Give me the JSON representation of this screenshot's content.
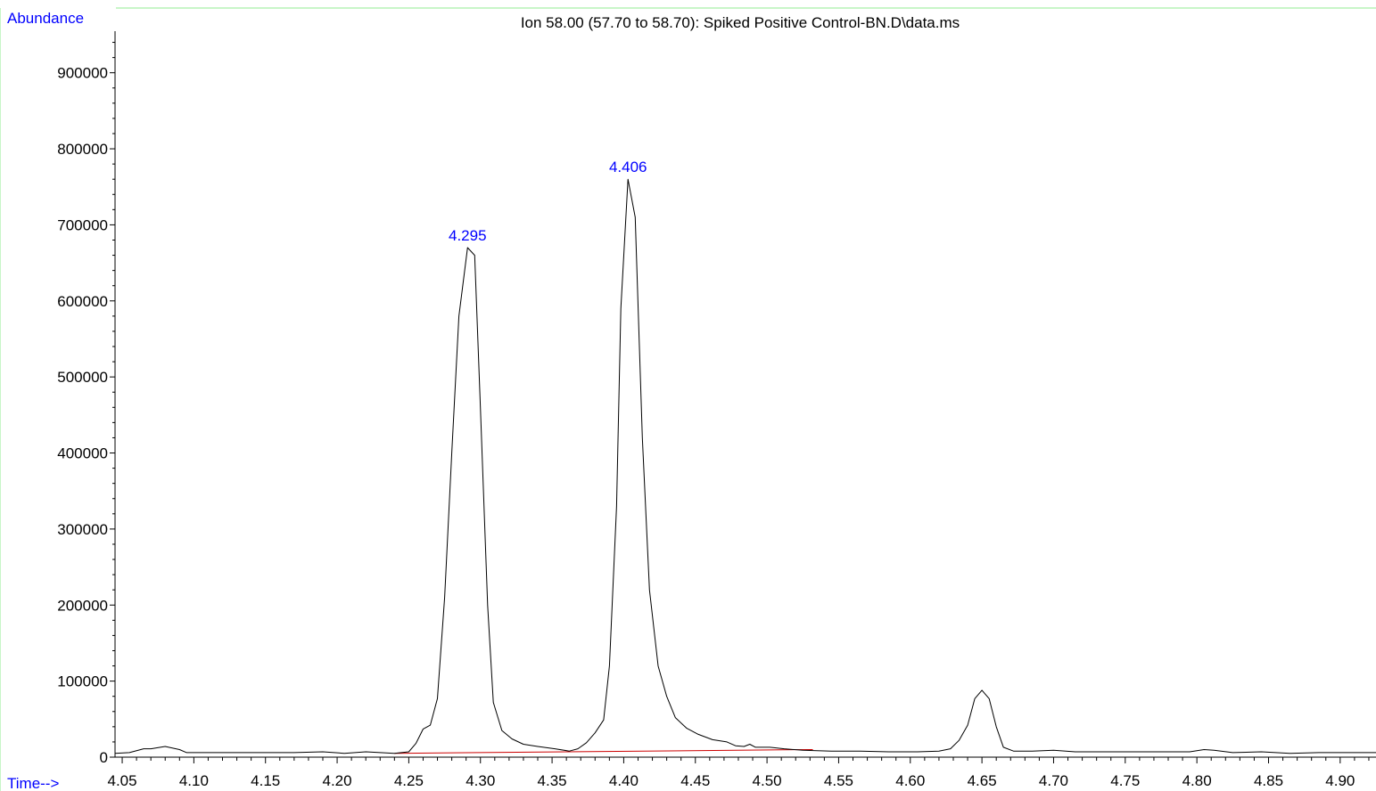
{
  "colors": {
    "frame": "#90ee90",
    "axis": "#000000",
    "trace": "#000000",
    "baseline": "#cc0000",
    "label_blue": "#0000ff"
  },
  "chart_data": {
    "type": "line",
    "title": "Ion  58.00 (57.70 to 58.70): Spiked Positive Control-BN.D\\data.ms",
    "ylabel": "Abundance",
    "xlabel": "Time-->",
    "xlim": [
      4.045,
      4.925
    ],
    "ylim": [
      0,
      950000
    ],
    "x_ticks": [
      "4.05",
      "4.10",
      "4.15",
      "4.20",
      "4.25",
      "4.30",
      "4.35",
      "4.40",
      "4.45",
      "4.50",
      "4.55",
      "4.60",
      "4.65",
      "4.70",
      "4.75",
      "4.80",
      "4.85",
      "4.90"
    ],
    "y_ticks": [
      "0",
      "100000",
      "200000",
      "300000",
      "400000",
      "500000",
      "600000",
      "700000",
      "800000",
      "900000"
    ],
    "grid": false,
    "series": [
      {
        "values": [
          [
            4.045,
            5000
          ],
          [
            4.055,
            6000
          ],
          [
            4.065,
            11000
          ],
          [
            4.07,
            11000
          ],
          [
            4.08,
            14000
          ],
          [
            4.09,
            10000
          ],
          [
            4.095,
            6000
          ],
          [
            4.11,
            6000
          ],
          [
            4.13,
            6000
          ],
          [
            4.15,
            6000
          ],
          [
            4.17,
            6000
          ],
          [
            4.19,
            7000
          ],
          [
            4.205,
            5000
          ],
          [
            4.22,
            7000
          ],
          [
            4.24,
            5000
          ],
          [
            4.25,
            7000
          ],
          [
            4.255,
            18000
          ],
          [
            4.26,
            37000
          ],
          [
            4.265,
            42000
          ],
          [
            4.27,
            77000
          ],
          [
            4.275,
            210000
          ],
          [
            4.28,
            400000
          ],
          [
            4.285,
            580000
          ],
          [
            4.291,
            670000
          ],
          [
            4.296,
            660000
          ],
          [
            4.3,
            460000
          ],
          [
            4.305,
            200000
          ],
          [
            4.309,
            72000
          ],
          [
            4.315,
            35000
          ],
          [
            4.322,
            24000
          ],
          [
            4.33,
            17000
          ],
          [
            4.34,
            14000
          ],
          [
            4.352,
            11000
          ],
          [
            4.362,
            8000
          ],
          [
            4.368,
            11000
          ],
          [
            4.374,
            19000
          ],
          [
            4.38,
            32000
          ],
          [
            4.386,
            49000
          ],
          [
            4.39,
            120000
          ],
          [
            4.395,
            330000
          ],
          [
            4.398,
            590000
          ],
          [
            4.403,
            760000
          ],
          [
            4.408,
            710000
          ],
          [
            4.413,
            420000
          ],
          [
            4.418,
            220000
          ],
          [
            4.424,
            120000
          ],
          [
            4.43,
            80000
          ],
          [
            4.436,
            52000
          ],
          [
            4.444,
            38000
          ],
          [
            4.452,
            30000
          ],
          [
            4.462,
            23000
          ],
          [
            4.472,
            20000
          ],
          [
            4.478,
            15000
          ],
          [
            4.484,
            14000
          ],
          [
            4.488,
            17000
          ],
          [
            4.492,
            13000
          ],
          [
            4.502,
            13000
          ],
          [
            4.512,
            11000
          ],
          [
            4.525,
            9000
          ],
          [
            4.545,
            8000
          ],
          [
            4.565,
            8000
          ],
          [
            4.585,
            7000
          ],
          [
            4.605,
            7000
          ],
          [
            4.62,
            8000
          ],
          [
            4.628,
            11000
          ],
          [
            4.634,
            22000
          ],
          [
            4.64,
            42000
          ],
          [
            4.645,
            77000
          ],
          [
            4.65,
            88000
          ],
          [
            4.655,
            77000
          ],
          [
            4.66,
            40000
          ],
          [
            4.665,
            13000
          ],
          [
            4.672,
            8000
          ],
          [
            4.685,
            8000
          ],
          [
            4.7,
            9000
          ],
          [
            4.715,
            7000
          ],
          [
            4.735,
            7000
          ],
          [
            4.755,
            7000
          ],
          [
            4.775,
            7000
          ],
          [
            4.795,
            7000
          ],
          [
            4.805,
            10000
          ],
          [
            4.812,
            9000
          ],
          [
            4.825,
            6000
          ],
          [
            4.845,
            7000
          ],
          [
            4.865,
            5000
          ],
          [
            4.885,
            6000
          ],
          [
            4.905,
            6000
          ],
          [
            4.925,
            6000
          ]
        ]
      }
    ],
    "baseline_segments": [
      {
        "x": [
          4.24,
          4.532
        ],
        "y": [
          5000,
          10000
        ]
      }
    ],
    "annotations": [
      {
        "text": "4.295",
        "x": 4.291,
        "y": 670000
      },
      {
        "text": "4.406",
        "x": 4.403,
        "y": 760000
      }
    ]
  }
}
